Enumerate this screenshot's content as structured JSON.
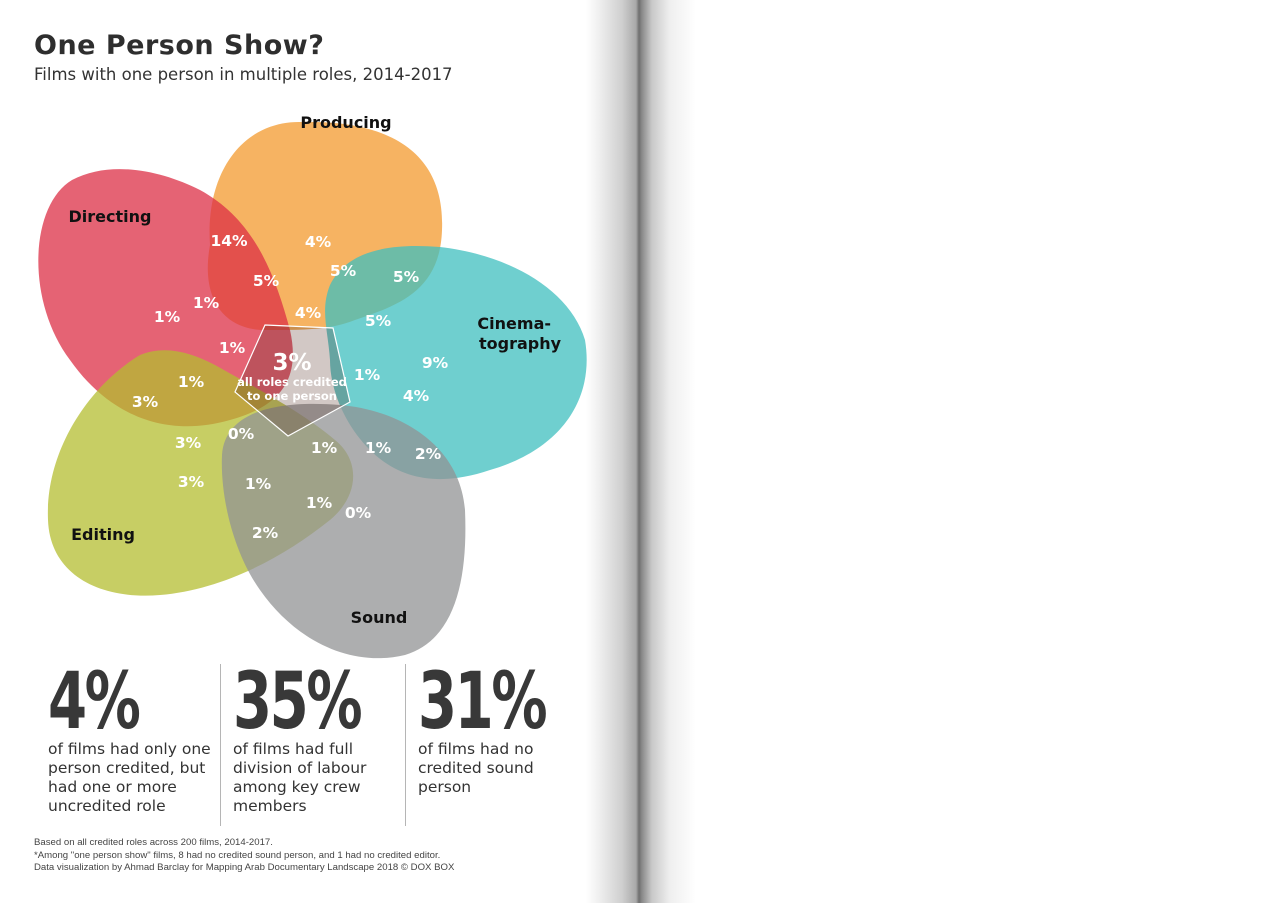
{
  "title": "One Person Show?",
  "subtitle": "Films with one person in multiple roles, 2014-2017",
  "chart_data": {
    "type": "venn",
    "title": "One Person Show?",
    "subtitle": "Films with one person in multiple roles, 2014-2017",
    "sets": [
      {
        "name": "Producing",
        "color": "#F39A2E"
      },
      {
        "name": "Directing",
        "color": "#DC2F46"
      },
      {
        "name": "Cinema-\ntography",
        "color": "#3FBFBF"
      },
      {
        "name": "Editing",
        "color": "#B4BE30"
      },
      {
        "name": "Sound",
        "color": "#929394"
      }
    ],
    "center": {
      "value": "3%",
      "label_line1": "all roles credited",
      "label_line2": "to one person"
    },
    "regions": [
      {
        "value": "14%"
      },
      {
        "value": "4%"
      },
      {
        "value": "5%"
      },
      {
        "value": "5%"
      },
      {
        "value": "5%"
      },
      {
        "value": "1%"
      },
      {
        "value": "1%"
      },
      {
        "value": "4%"
      },
      {
        "value": "5%"
      },
      {
        "value": "1%"
      },
      {
        "value": "9%"
      },
      {
        "value": "1%"
      },
      {
        "value": "3%"
      },
      {
        "value": "1%"
      },
      {
        "value": "4%"
      },
      {
        "value": "3%"
      },
      {
        "value": "0%"
      },
      {
        "value": "1%"
      },
      {
        "value": "1%"
      },
      {
        "value": "2%"
      },
      {
        "value": "3%"
      },
      {
        "value": "1%"
      },
      {
        "value": "1%"
      },
      {
        "value": "0%"
      },
      {
        "value": "2%"
      }
    ]
  },
  "stats": [
    {
      "value": "4%",
      "description": "of films had only one person credited, but had one or more uncredited role"
    },
    {
      "value": "35%",
      "description": "of films had full division of labour among key crew members"
    },
    {
      "value": "31%",
      "description": "of films had no credited sound person"
    }
  ],
  "notes": {
    "line1": "Based on all credited roles across 200 films, 2014-2017.",
    "line2": "*Among \"one person show\" films, 8 had no credited sound person, and 1 had no credited editor.",
    "line3": "Data visualization by Ahmad Barclay for Mapping Arab Documentary Landscape 2018 © DOX BOX"
  }
}
